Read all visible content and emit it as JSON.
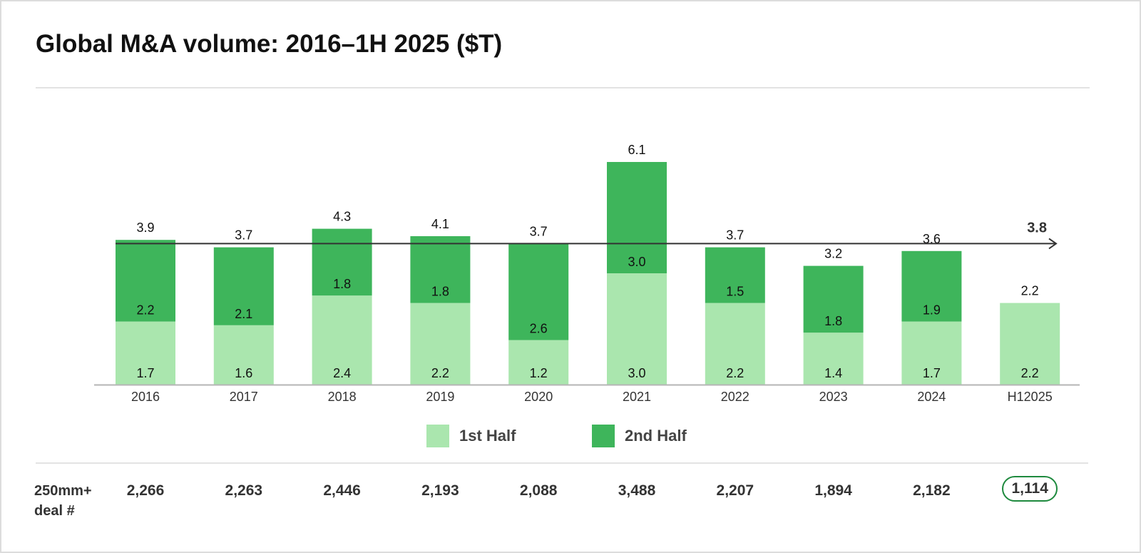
{
  "title": "Global M&A volume: 2016–1H 2025 ($T)",
  "colors": {
    "first_half": "#aae6ae",
    "second_half": "#3eb55b",
    "average_line": "#333333",
    "highlight_border": "#1e8a3e"
  },
  "chart_data": {
    "type": "bar",
    "stacked": true,
    "categories": [
      "2016",
      "2017",
      "2018",
      "2019",
      "2020",
      "2021",
      "2022",
      "2023",
      "2024",
      "H12025"
    ],
    "series": [
      {
        "name": "1st Half",
        "values": [
          1.7,
          1.6,
          2.4,
          2.2,
          1.2,
          3.0,
          2.2,
          1.4,
          1.7,
          2.2
        ],
        "labels": [
          "1.7",
          "1.6",
          "2.4",
          "2.2",
          "1.2",
          "3.0",
          "2.2",
          "1.4",
          "1.7",
          "2.2"
        ]
      },
      {
        "name": "2nd Half",
        "values": [
          2.2,
          2.1,
          1.8,
          1.8,
          2.6,
          3.0,
          1.5,
          1.8,
          1.9,
          null
        ],
        "labels": [
          "2.2",
          "2.1",
          "1.8",
          "1.8",
          "2.6",
          "3.0",
          "1.5",
          "1.8",
          "1.9",
          null
        ]
      }
    ],
    "totals": [
      "3.9",
      "3.7",
      "4.3",
      "4.1",
      "3.7",
      "6.1",
      "3.7",
      "3.2",
      "3.6",
      "2.2"
    ],
    "average": {
      "value": 3.8,
      "label": "3.8"
    },
    "legend": {
      "position": "bottom-center",
      "items": [
        "1st Half",
        "2nd Half"
      ]
    },
    "grid": false
  },
  "deal_count": {
    "label_line1": "250mm+",
    "label_line2": "deal #",
    "values": [
      "2,266",
      "2,263",
      "2,446",
      "2,193",
      "2,088",
      "3,488",
      "2,207",
      "1,894",
      "2,182",
      "1,114"
    ],
    "highlighted_index": 9
  }
}
